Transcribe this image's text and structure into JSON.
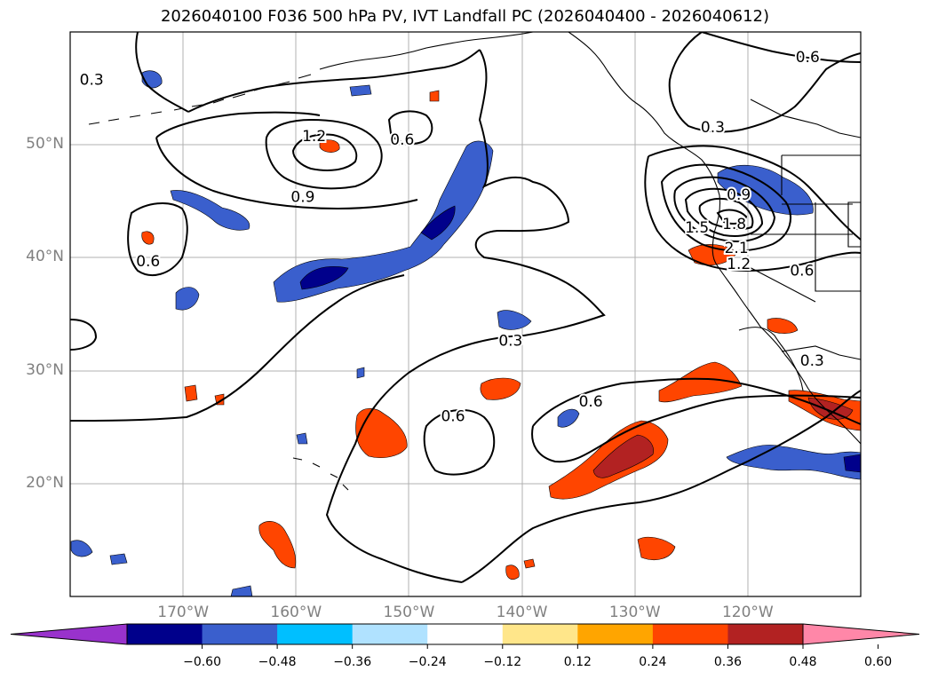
{
  "title": "2026040100 F036 500 hPa PV, IVT Landfall PC (2026040400 - 2026040612)",
  "map": {
    "projection": "PlateCarree",
    "lon_range": [
      -180,
      -110
    ],
    "lat_range": [
      10,
      60
    ],
    "gridlines": true,
    "lon_ticks": [
      {
        "lon": -170,
        "label": "170°W"
      },
      {
        "lon": -160,
        "label": "160°W"
      },
      {
        "lon": -150,
        "label": "150°W"
      },
      {
        "lon": -140,
        "label": "140°W"
      },
      {
        "lon": -130,
        "label": "130°W"
      },
      {
        "lon": -120,
        "label": "120°W"
      }
    ],
    "lat_ticks": [
      {
        "lat": 50,
        "label": "50°N"
      },
      {
        "lat": 40,
        "label": "40°N"
      },
      {
        "lat": 30,
        "label": "30°N"
      },
      {
        "lat": 20,
        "label": "20°N"
      }
    ],
    "contour_labels": [
      {
        "text": "0.3",
        "lon": -178.1,
        "lat": 55.8
      },
      {
        "text": "0.6",
        "lon": -114.7,
        "lat": 57.8
      },
      {
        "text": "0.3",
        "lon": -123.1,
        "lat": 51.6
      },
      {
        "text": "1.2",
        "lon": -158.4,
        "lat": 50.8
      },
      {
        "text": "0.6",
        "lon": -150.6,
        "lat": 50.5
      },
      {
        "text": "0.9",
        "lon": -159.4,
        "lat": 45.4
      },
      {
        "text": "0.9",
        "lon": -120.8,
        "lat": 45.6
      },
      {
        "text": "1.5",
        "lon": -124.5,
        "lat": 42.7
      },
      {
        "text": "1.8",
        "lon": -121.2,
        "lat": 43.0
      },
      {
        "text": "2.1",
        "lon": -121.0,
        "lat": 40.9
      },
      {
        "text": "1.2",
        "lon": -120.8,
        "lat": 39.5
      },
      {
        "text": "0.6",
        "lon": -115.2,
        "lat": 38.9
      },
      {
        "text": "0.6",
        "lon": -173.1,
        "lat": 39.7
      },
      {
        "text": "0.3",
        "lon": -141.0,
        "lat": 32.7
      },
      {
        "text": "0.3",
        "lon": -114.3,
        "lat": 30.9
      },
      {
        "text": "0.6",
        "lon": -146.1,
        "lat": 26.0
      },
      {
        "text": "0.6",
        "lon": -133.9,
        "lat": 27.3
      }
    ]
  },
  "colorbar": {
    "colors": [
      "#9932cc",
      "#00008b",
      "#3a5fcd",
      "#00bfff",
      "#b0e2ff",
      "#ffffff",
      "#ffe68a",
      "#ffa500",
      "#ff4500",
      "#b22222",
      "#ff87a8"
    ],
    "ticks": [
      "−0.60",
      "−0.48",
      "−0.36",
      "−0.24",
      "−0.12",
      "0.12",
      "0.24",
      "0.36",
      "0.48",
      "0.60"
    ],
    "extend": "both"
  }
}
